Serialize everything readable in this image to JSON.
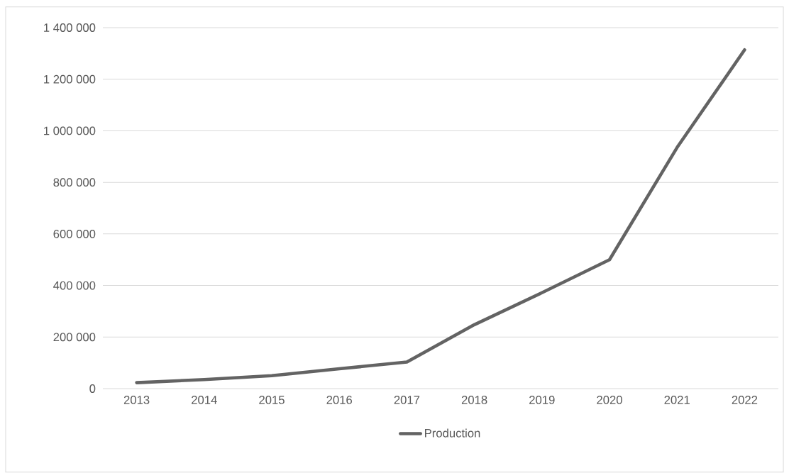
{
  "chart_data": {
    "type": "line",
    "categories": [
      "2013",
      "2014",
      "2015",
      "2016",
      "2017",
      "2018",
      "2019",
      "2020",
      "2021",
      "2022"
    ],
    "series": [
      {
        "name": "Production",
        "color": "#636363",
        "values": [
          23000,
          35000,
          50000,
          77000,
          103000,
          248000,
          372000,
          500000,
          935000,
          1314000
        ]
      }
    ],
    "ylim": [
      0,
      1400000
    ],
    "yticks": [
      0,
      {
        "value": 200000,
        "label": "200 000"
      },
      {
        "value": 400000,
        "label": "400 000"
      },
      {
        "value": 600000,
        "label": "600 000"
      },
      {
        "value": 800000,
        "label": "800 000"
      },
      {
        "value": 1000000,
        "label": "1 000 000"
      },
      {
        "value": 1200000,
        "label": "1 200 000"
      },
      {
        "value": 1400000,
        "label": "1 400 000"
      }
    ],
    "grid": "y",
    "legend": "bottom",
    "marker": "none",
    "line_style": "solid"
  }
}
